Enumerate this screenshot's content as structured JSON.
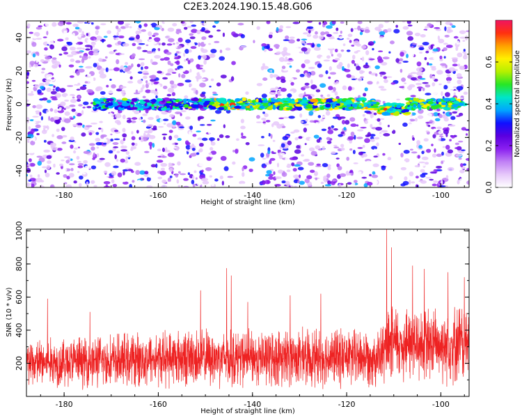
{
  "title": "C2E3.2024.190.15.48.G06",
  "colors": {
    "snr_line": "#ee2222",
    "colormap": [
      "#ffffff",
      "#e6c8fa",
      "#c080f5",
      "#8a1ff0",
      "#5a00e0",
      "#1010ff",
      "#00a6ff",
      "#00e6c8",
      "#26e626",
      "#b4f000",
      "#fff000",
      "#ffa000",
      "#ff3010",
      "#f01460"
    ]
  },
  "chart_data": [
    {
      "type": "heatmap",
      "xlabel": "Height of straight line (km)",
      "ylabel": "Frequency (Hz)",
      "xlim": [
        -188,
        -94
      ],
      "ylim": [
        -50,
        50
      ],
      "x_ticks": [
        -180,
        -160,
        -140,
        -120,
        -100
      ],
      "y_ticks": [
        -40,
        -20,
        0,
        20,
        40
      ],
      "colorbar": {
        "label": "Normalized spectral amplitude",
        "range": [
          0,
          0.8
        ],
        "ticks": [
          0.0,
          0.2,
          0.4,
          0.6
        ]
      },
      "signal_band": {
        "center_hz": 0,
        "half_width_hz": 3,
        "start_km": -174,
        "end_km": -95,
        "peak_amplitude": 0.7,
        "offset_center_hz": -3,
        "offset_start_km": -113,
        "offset_end_km": -107
      },
      "noise_gaps_km": [
        [
          -147.5,
          -138
        ],
        [
          -112,
          -108
        ]
      ]
    },
    {
      "type": "line",
      "xlabel": "Height of straight line (km)",
      "ylabel": "SNR (10 * v/v)",
      "xlim": [
        -188,
        -94
      ],
      "ylim": [
        0,
        1010
      ],
      "x_ticks": [
        -180,
        -160,
        -140,
        -120,
        -100
      ],
      "y_ticks": [
        200,
        400,
        600,
        800,
        1000
      ],
      "baseline": [
        [
          -188,
          200
        ],
        [
          -170,
          215
        ],
        [
          -155,
          235
        ],
        [
          -140,
          230
        ],
        [
          -125,
          235
        ],
        [
          -113,
          240
        ],
        [
          -110,
          320
        ],
        [
          -100,
          310
        ],
        [
          -94,
          330
        ]
      ],
      "peaks": [
        {
          "x": -183.5,
          "y": 590
        },
        {
          "x": -174.5,
          "y": 510
        },
        {
          "x": -151,
          "y": 640
        },
        {
          "x": -145.5,
          "y": 775
        },
        {
          "x": -144.5,
          "y": 730
        },
        {
          "x": -141,
          "y": 570
        },
        {
          "x": -132,
          "y": 610
        },
        {
          "x": -125.5,
          "y": 620
        },
        {
          "x": -111.5,
          "y": 1010
        },
        {
          "x": -110.5,
          "y": 900
        },
        {
          "x": -106,
          "y": 790
        },
        {
          "x": -103.5,
          "y": 770
        },
        {
          "x": -98.5,
          "y": 750
        },
        {
          "x": -95,
          "y": 720
        }
      ]
    }
  ]
}
